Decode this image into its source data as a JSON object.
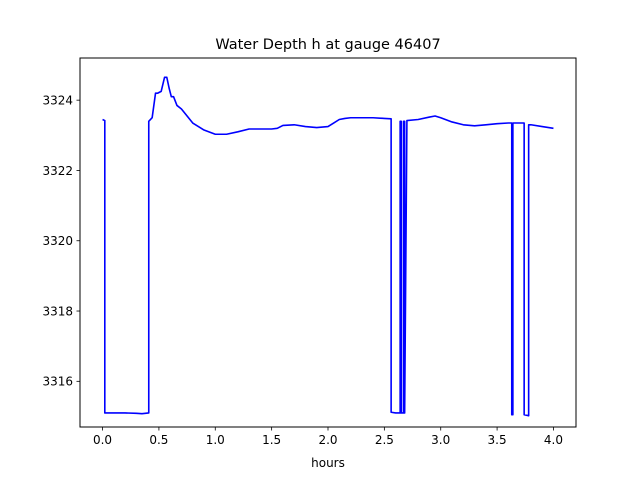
{
  "chart_data": {
    "type": "line",
    "title": "Water Depth h at gauge 46407",
    "xlabel": "hours",
    "ylabel": "",
    "xlim": [
      -0.2,
      4.2
    ],
    "ylim": [
      3314.7,
      3325.2
    ],
    "xticks": [
      0.0,
      0.5,
      1.0,
      1.5,
      2.0,
      2.5,
      3.0,
      3.5,
      4.0
    ],
    "xtick_labels": [
      "0.0",
      "0.5",
      "1.0",
      "1.5",
      "2.0",
      "2.5",
      "3.0",
      "3.5",
      "4.0"
    ],
    "yticks": [
      3316,
      3318,
      3320,
      3322,
      3324
    ],
    "ytick_labels": [
      "3316",
      "3318",
      "3320",
      "3322",
      "3324"
    ],
    "grid": false,
    "series": [
      {
        "color": "#0000ff",
        "x": [
          0.0,
          0.02,
          0.02,
          0.05,
          0.1,
          0.2,
          0.3,
          0.35,
          0.41,
          0.41,
          0.44,
          0.47,
          0.49,
          0.52,
          0.55,
          0.57,
          0.59,
          0.61,
          0.63,
          0.66,
          0.7,
          0.75,
          0.8,
          0.9,
          1.0,
          1.1,
          1.2,
          1.3,
          1.35,
          1.4,
          1.5,
          1.55,
          1.6,
          1.7,
          1.8,
          1.9,
          2.0,
          2.05,
          2.1,
          2.15,
          2.2,
          2.3,
          2.4,
          2.5,
          2.56,
          2.56,
          2.6,
          2.64,
          2.64,
          2.65,
          2.65,
          2.67,
          2.67,
          2.68,
          2.68,
          2.7,
          2.8,
          2.9,
          2.95,
          3.0,
          3.1,
          3.2,
          3.3,
          3.4,
          3.5,
          3.6,
          3.63,
          3.63,
          3.64,
          3.64,
          3.66,
          3.7,
          3.74,
          3.74,
          3.78,
          3.78,
          3.8,
          3.9,
          4.0
        ],
        "y": [
          3323.45,
          3323.42,
          3315.1,
          3315.1,
          3315.1,
          3315.1,
          3315.09,
          3315.08,
          3315.1,
          3323.4,
          3323.5,
          3324.2,
          3324.2,
          3324.25,
          3324.65,
          3324.65,
          3324.35,
          3324.1,
          3324.1,
          3323.85,
          3323.75,
          3323.55,
          3323.35,
          3323.15,
          3323.03,
          3323.03,
          3323.1,
          3323.18,
          3323.18,
          3323.18,
          3323.18,
          3323.2,
          3323.28,
          3323.3,
          3323.25,
          3323.22,
          3323.25,
          3323.35,
          3323.45,
          3323.48,
          3323.5,
          3323.5,
          3323.5,
          3323.48,
          3323.47,
          3315.12,
          3315.1,
          3315.1,
          3323.4,
          3323.4,
          3315.1,
          3315.1,
          3323.4,
          3323.4,
          3315.1,
          3323.42,
          3323.45,
          3323.52,
          3323.55,
          3323.5,
          3323.38,
          3323.3,
          3323.27,
          3323.3,
          3323.33,
          3323.35,
          3323.35,
          3315.05,
          3315.05,
          3323.35,
          3323.35,
          3323.35,
          3323.35,
          3315.05,
          3315.02,
          3323.3,
          3323.3,
          3323.25,
          3323.2
        ]
      }
    ]
  }
}
